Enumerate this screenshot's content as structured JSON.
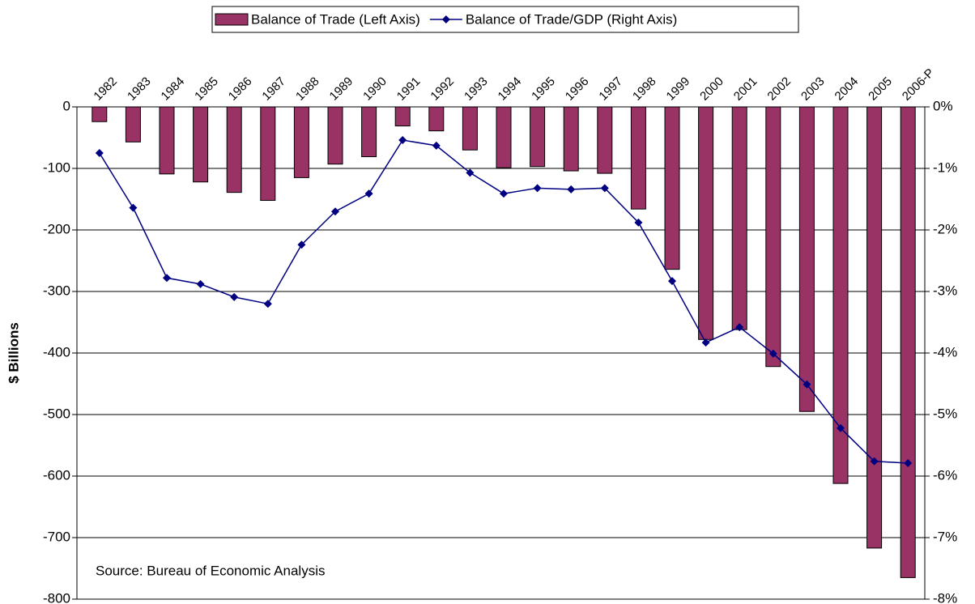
{
  "chart_data": {
    "type": "bar",
    "categories": [
      "1982",
      "1983",
      "1984",
      "1985",
      "1986",
      "1987",
      "1988",
      "1989",
      "1990",
      "1991",
      "1992",
      "1993",
      "1994",
      "1995",
      "1996",
      "1997",
      "1998",
      "1999",
      "2000",
      "2001",
      "2002",
      "2003",
      "2004",
      "2005",
      "2006-P"
    ],
    "series": [
      {
        "name": "Balance of Trade (Left Axis)",
        "type": "bar",
        "color": "#993366",
        "values": [
          -24,
          -57,
          -109,
          -122,
          -139,
          -152,
          -115,
          -93,
          -81,
          -31,
          -39,
          -70,
          -99,
          -97,
          -104,
          -108,
          -166,
          -264,
          -378,
          -362,
          -422,
          -495,
          -612,
          -717,
          -765
        ]
      },
      {
        "name": "Balance of Trade/GDP (Right Axis)",
        "type": "line",
        "axis": "y2",
        "color": "#000080",
        "values": [
          -0.75,
          -1.64,
          -2.78,
          -2.88,
          -3.09,
          -3.2,
          -2.24,
          -1.7,
          -1.41,
          -0.54,
          -0.63,
          -1.07,
          -1.41,
          -1.32,
          -1.34,
          -1.32,
          -1.88,
          -2.83,
          -3.83,
          -3.58,
          -4.01,
          -4.51,
          -5.22,
          -5.76,
          -5.79
        ]
      }
    ],
    "ylabel": "$ Billions",
    "ylim": [
      -800,
      0
    ],
    "yticks": [
      0,
      -100,
      -200,
      -300,
      -400,
      -500,
      -600,
      -700,
      -800
    ],
    "y2lim": [
      -8,
      0
    ],
    "y2ticks": [
      {
        "value": 0,
        "label": "0%"
      },
      {
        "value": -1,
        "label": "-1%"
      },
      {
        "value": -2,
        "label": "-2%"
      },
      {
        "value": -3,
        "label": "-3%"
      },
      {
        "value": -4,
        "label": "-4%"
      },
      {
        "value": -5,
        "label": "-5%"
      },
      {
        "value": -6,
        "label": "-6%"
      },
      {
        "value": -7,
        "label": "-7%"
      },
      {
        "value": -8,
        "label": "-8%"
      }
    ],
    "annotation": "Source: Bureau of Economic Analysis",
    "grid": true,
    "legend": "top"
  }
}
